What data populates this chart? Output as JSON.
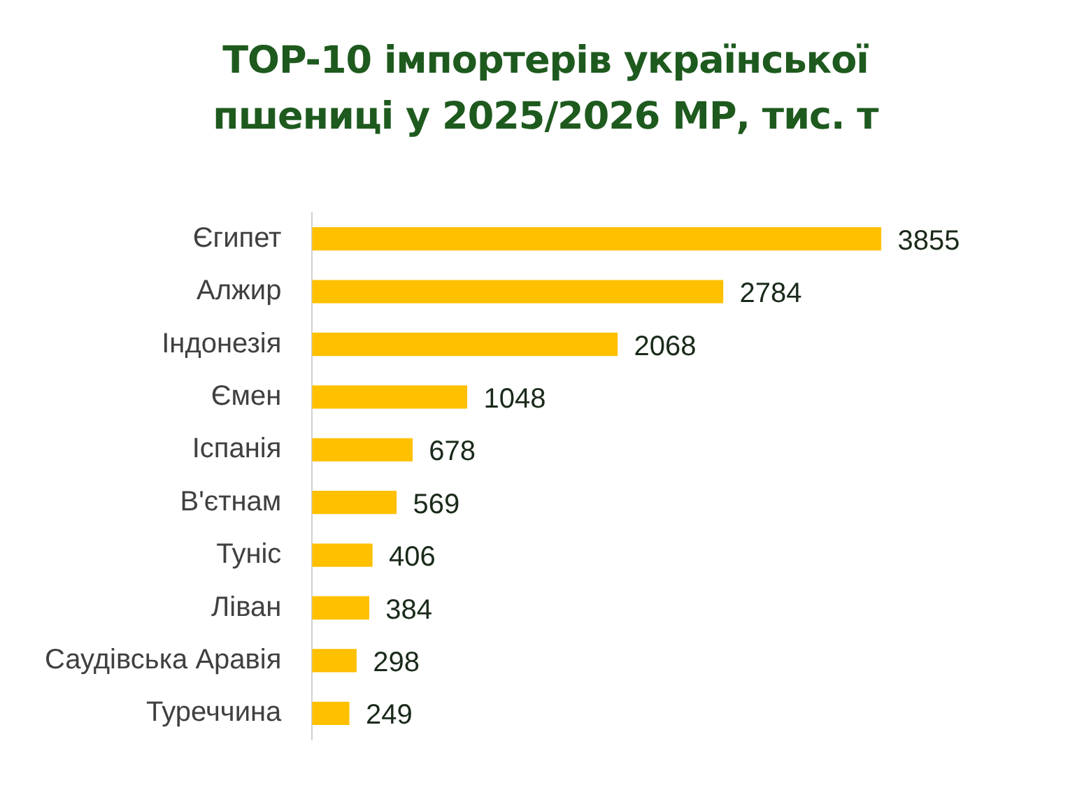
{
  "chart_data": {
    "type": "bar",
    "orientation": "horizontal",
    "title": "TOP-10 імпортерів української пшениці у 2025/2026 МР, тис. т",
    "categories": [
      "Єгипет",
      "Алжир",
      "Індонезія",
      "Ємен",
      "Іспанія",
      "В'єтнам",
      "Туніс",
      "Ліван",
      "Саудівська Аравія",
      "Туреччина"
    ],
    "values": [
      3855,
      2784,
      2068,
      1048,
      678,
      569,
      406,
      384,
      298,
      249
    ],
    "color": "#ffc000",
    "data_labels": true,
    "grid": false,
    "legend": false,
    "tick_labels": "y"
  }
}
